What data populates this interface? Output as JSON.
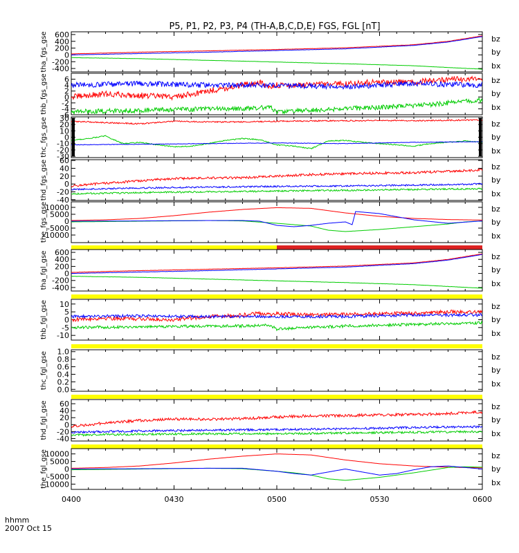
{
  "title": "P5, P1, P2, P3, P4 (TH-A,B,C,D,E) FGS, FGL [nT]",
  "xaxis": {
    "ticks": [
      "0400",
      "0430",
      "0500",
      "0530",
      "0600"
    ],
    "label_line1": "hhmm",
    "label_line2": "2007 Oct 15",
    "range_minutes": [
      0,
      120
    ]
  },
  "colors": {
    "bx": "#0000ff",
    "by": "#00cc00",
    "bz": "#ff0000",
    "bar_yellow": "#ffff00",
    "bar_red": "#dd2222"
  },
  "legend_labels": [
    "bz",
    "by",
    "bx"
  ],
  "chart_data": [
    {
      "type": "line",
      "panel": 1,
      "ylabel": "tha_fgs_gse",
      "ylim": [
        -500,
        680
      ],
      "ticks": [
        600,
        400,
        200,
        0,
        -200,
        -400
      ],
      "series": [
        {
          "name": "bz",
          "x": [
            0,
            20,
            40,
            60,
            80,
            100,
            110,
            120
          ],
          "values": [
            30,
            80,
            120,
            160,
            210,
            300,
            400,
            560
          ],
          "noise": 4
        },
        {
          "name": "by",
          "x": [
            0,
            20,
            40,
            60,
            80,
            100,
            110,
            120
          ],
          "values": [
            -80,
            -110,
            -160,
            -210,
            -260,
            -320,
            -370,
            -420
          ],
          "noise": 3
        },
        {
          "name": "bx",
          "x": [
            0,
            20,
            40,
            60,
            80,
            100,
            110,
            120
          ],
          "values": [
            0,
            40,
            80,
            130,
            180,
            280,
            380,
            540
          ],
          "noise": 4
        }
      ]
    },
    {
      "type": "line",
      "panel": 2,
      "ylabel": "thb_fgs_gse",
      "ylim": [
        -6,
        8
      ],
      "ticks": [
        6,
        4,
        2,
        0,
        -2,
        -4,
        -6
      ],
      "series": [
        {
          "name": "bz",
          "x": [
            0,
            10,
            20,
            30,
            40,
            50,
            55,
            58,
            60,
            70,
            80,
            90,
            100,
            110,
            120
          ],
          "values": [
            0,
            1,
            0.5,
            0,
            2,
            4,
            5,
            3,
            4,
            4,
            4.5,
            5,
            5,
            6,
            6
          ],
          "noise": 1.0
        },
        {
          "name": "by",
          "x": [
            0,
            20,
            40,
            50,
            58,
            60,
            80,
            100,
            120
          ],
          "values": [
            -5,
            -4.5,
            -4,
            -4,
            -3.5,
            -5,
            -4,
            -3,
            -1
          ],
          "noise": 0.8
        },
        {
          "name": "bx",
          "x": [
            0,
            20,
            40,
            60,
            80,
            100,
            120
          ],
          "values": [
            4,
            4.5,
            4,
            4,
            3.5,
            4.5,
            4
          ],
          "noise": 0.9
        }
      ]
    },
    {
      "type": "line",
      "panel": 3,
      "ylabel": "thc_fgs_gse",
      "ylim": [
        -32,
        32
      ],
      "ticks": [
        30,
        20,
        10,
        0,
        -10,
        -20,
        -30
      ],
      "series": [
        {
          "name": "bz",
          "x": [
            0,
            10,
            20,
            30,
            40,
            50,
            60,
            80,
            100,
            120
          ],
          "values": [
            25,
            23,
            21,
            25,
            24,
            24,
            25,
            26,
            26,
            27
          ],
          "noise": 1.0
        },
        {
          "name": "by",
          "x": [
            0,
            5,
            10,
            15,
            20,
            25,
            30,
            35,
            40,
            45,
            50,
            55,
            60,
            65,
            70,
            75,
            80,
            85,
            90,
            95,
            100,
            105,
            110,
            115,
            120
          ],
          "values": [
            -5,
            -2,
            2,
            -10,
            -8,
            -12,
            -15,
            -14,
            -10,
            -5,
            -2,
            -4,
            -12,
            -14,
            -18,
            -6,
            -5,
            -8,
            -10,
            -12,
            -14,
            -10,
            -8,
            -6,
            -8
          ],
          "noise": 0.8
        },
        {
          "name": "bx",
          "x": [
            0,
            20,
            40,
            60,
            80,
            100,
            120
          ],
          "values": [
            -12,
            -11,
            -10,
            -9,
            -10,
            -8,
            -7
          ],
          "noise": 0.4
        }
      ]
    },
    {
      "type": "line",
      "panel": 4,
      "ylabel": "thd_fgs_gse",
      "ylim": [
        -42,
        62
      ],
      "ticks": [
        60,
        40,
        20,
        0,
        -20,
        -40
      ],
      "series": [
        {
          "name": "bz",
          "x": [
            0,
            10,
            20,
            30,
            40,
            50,
            60,
            70,
            80,
            90,
            100,
            110,
            120
          ],
          "values": [
            -5,
            2,
            8,
            14,
            15,
            16,
            20,
            24,
            26,
            28,
            29,
            32,
            36
          ],
          "noise": 3.0
        },
        {
          "name": "by",
          "x": [
            0,
            20,
            40,
            60,
            80,
            100,
            120
          ],
          "values": [
            -25,
            -22,
            -20,
            -18,
            -16,
            -14,
            -12
          ],
          "noise": 2.0
        },
        {
          "name": "bx",
          "x": [
            0,
            20,
            40,
            60,
            80,
            100,
            120
          ],
          "values": [
            -14,
            -10,
            -8,
            -6,
            -5,
            -3,
            0
          ],
          "noise": 2.0
        }
      ]
    },
    {
      "type": "line",
      "panel": 5,
      "ylabel": "the_fgs_gse",
      "ylim": [
        -15500,
        14000
      ],
      "ticks": [
        10000,
        5000,
        0,
        -5000,
        -10000
      ],
      "bar": "state",
      "bar_switch": 60,
      "series": [
        {
          "name": "bz",
          "x": [
            0,
            10,
            20,
            30,
            40,
            50,
            60,
            70,
            80,
            90,
            100,
            110,
            120
          ],
          "values": [
            500,
            1000,
            2000,
            4000,
            6500,
            8500,
            9800,
            9300,
            6000,
            3500,
            2000,
            1200,
            800
          ],
          "noise": 0
        },
        {
          "name": "by",
          "x": [
            0,
            20,
            40,
            50,
            60,
            65,
            70,
            75,
            80,
            90,
            100,
            110,
            115,
            120
          ],
          "values": [
            -500,
            0,
            500,
            200,
            -1500,
            -2500,
            -3500,
            -6500,
            -7500,
            -6000,
            -4000,
            -2000,
            -500,
            200
          ],
          "noise": 0
        },
        {
          "name": "bx",
          "x": [
            0,
            20,
            40,
            50,
            55,
            60,
            65,
            70,
            75,
            80,
            82,
            83,
            90,
            100,
            110,
            120
          ],
          "values": [
            0,
            200,
            500,
            500,
            0,
            -3000,
            -4000,
            -3000,
            -1500,
            -500,
            -2500,
            7000,
            5500,
            1000,
            -1500,
            200
          ],
          "noise": 0
        }
      ]
    },
    {
      "type": "line",
      "panel": 6,
      "ylabel": "tha_fgl_gse",
      "ylim": [
        -500,
        680
      ],
      "ticks": [
        600,
        400,
        200,
        0,
        -200,
        -400
      ],
      "bar": "yellow",
      "series": [
        {
          "name": "bz",
          "x": [
            0,
            20,
            40,
            60,
            80,
            100,
            110,
            120
          ],
          "values": [
            30,
            80,
            120,
            160,
            210,
            300,
            400,
            560
          ],
          "noise": 4
        },
        {
          "name": "by",
          "x": [
            0,
            20,
            40,
            60,
            80,
            100,
            110,
            120
          ],
          "values": [
            -80,
            -110,
            -160,
            -210,
            -260,
            -320,
            -370,
            -420
          ],
          "noise": 3
        },
        {
          "name": "bx",
          "x": [
            0,
            20,
            40,
            60,
            80,
            100,
            110,
            120
          ],
          "values": [
            0,
            40,
            80,
            130,
            180,
            280,
            380,
            540
          ],
          "noise": 4
        }
      ]
    },
    {
      "type": "line",
      "panel": 7,
      "ylabel": "thb_fgl_gse",
      "ylim": [
        -13,
        13
      ],
      "ticks": [
        10,
        5,
        0,
        -5,
        -10
      ],
      "bar": "yellow",
      "series": [
        {
          "name": "bz",
          "x": [
            0,
            10,
            20,
            30,
            40,
            50,
            55,
            58,
            60,
            70,
            80,
            90,
            100,
            110,
            120
          ],
          "values": [
            0,
            1,
            0.5,
            0,
            2,
            3,
            4,
            3,
            4,
            3,
            3.5,
            4,
            4,
            5,
            5
          ],
          "noise": 1.2
        },
        {
          "name": "by",
          "x": [
            0,
            20,
            40,
            50,
            58,
            60,
            80,
            100,
            120
          ],
          "values": [
            -5,
            -4.5,
            -4,
            -4,
            -3.5,
            -6,
            -4,
            -3,
            -2
          ],
          "noise": 0.9
        },
        {
          "name": "bx",
          "x": [
            0,
            20,
            40,
            60,
            80,
            100,
            120
          ],
          "values": [
            2,
            2.5,
            2,
            2,
            2,
            3,
            3
          ],
          "noise": 0.9
        }
      ]
    },
    {
      "type": "line",
      "panel": 8,
      "ylabel": "thc_fgl_gse",
      "ylim": [
        -0.05,
        1.05
      ],
      "ticks": [
        1.0,
        0.8,
        0.6,
        0.4,
        0.2,
        0.0
      ],
      "tick_decimals": 1,
      "bar": "yellow",
      "series": []
    },
    {
      "type": "line",
      "panel": 9,
      "ylabel": "thd_fgl_gse",
      "ylim": [
        -47,
        72
      ],
      "ticks": [
        60,
        40,
        20,
        0,
        -20,
        -40
      ],
      "bar": "yellow",
      "series": [
        {
          "name": "bz",
          "x": [
            0,
            10,
            20,
            30,
            40,
            50,
            60,
            70,
            80,
            90,
            100,
            110,
            120
          ],
          "values": [
            -5,
            5,
            12,
            16,
            15,
            17,
            22,
            25,
            26,
            28,
            29,
            32,
            36
          ],
          "noise": 4.0
        },
        {
          "name": "by",
          "x": [
            0,
            20,
            40,
            60,
            80,
            100,
            120
          ],
          "values": [
            -30,
            -28,
            -26,
            -26,
            -24,
            -22,
            -20
          ],
          "noise": 3.0
        },
        {
          "name": "bx",
          "x": [
            0,
            20,
            40,
            60,
            80,
            100,
            120
          ],
          "values": [
            -22,
            -18,
            -16,
            -14,
            -12,
            -8,
            -6
          ],
          "noise": 3.0
        }
      ]
    },
    {
      "type": "line",
      "panel": 10,
      "ylabel": "the_fgl_gse",
      "ylim": [
        -13500,
        13500
      ],
      "ticks": [
        10000,
        5000,
        0,
        -5000,
        -10000
      ],
      "series": [
        {
          "name": "bz",
          "x": [
            0,
            10,
            20,
            30,
            40,
            50,
            60,
            70,
            80,
            90,
            100,
            110,
            120
          ],
          "values": [
            500,
            1000,
            2000,
            4000,
            6500,
            8500,
            10000,
            9300,
            6000,
            3500,
            2000,
            1200,
            800
          ],
          "noise": 0
        },
        {
          "name": "by",
          "x": [
            0,
            20,
            40,
            50,
            60,
            65,
            70,
            75,
            80,
            90,
            100,
            110,
            115,
            120
          ],
          "values": [
            -500,
            0,
            500,
            200,
            -1500,
            -2500,
            -4000,
            -6500,
            -7500,
            -5500,
            -2500,
            1000,
            1500,
            1200
          ],
          "noise": 0
        },
        {
          "name": "bx",
          "x": [
            0,
            20,
            40,
            50,
            60,
            65,
            70,
            75,
            80,
            85,
            90,
            95,
            100,
            105,
            110,
            115,
            120
          ],
          "values": [
            0,
            200,
            500,
            500,
            -1500,
            -3000,
            -4000,
            -2000,
            0,
            -2000,
            -4000,
            -3000,
            -500,
            1500,
            2000,
            1000,
            0
          ],
          "noise": 0
        }
      ]
    }
  ]
}
